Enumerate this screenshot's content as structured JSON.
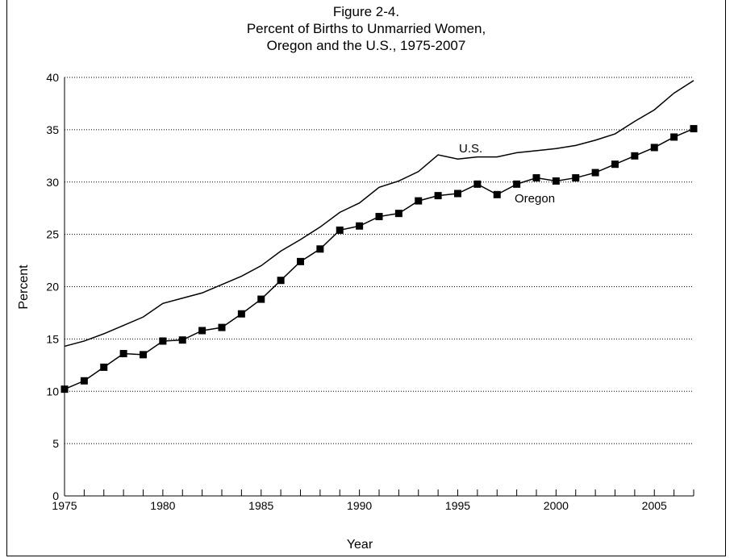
{
  "chart_data": {
    "type": "line",
    "title_lines": [
      "Figure 2-4.",
      "Percent of Births to Unmarried Women,",
      "Oregon and the U.S., 1975-2007"
    ],
    "xlabel": "Year",
    "ylabel": "Percent",
    "xlim": [
      1975,
      2007
    ],
    "ylim": [
      0,
      40
    ],
    "x_ticks": [
      1975,
      1980,
      1985,
      1990,
      1995,
      2000,
      2005
    ],
    "y_ticks": [
      0,
      5,
      10,
      15,
      20,
      25,
      30,
      35,
      40
    ],
    "grid": "horizontal dotted",
    "x": [
      1975,
      1976,
      1977,
      1978,
      1979,
      1980,
      1981,
      1982,
      1983,
      1984,
      1985,
      1986,
      1987,
      1988,
      1989,
      1990,
      1991,
      1992,
      1993,
      1994,
      1995,
      1996,
      1997,
      1998,
      1999,
      2000,
      2001,
      2002,
      2003,
      2004,
      2005,
      2006,
      2007
    ],
    "series": [
      {
        "name": "U.S.",
        "marker": "none",
        "color": "#000000",
        "values": [
          14.3,
          14.8,
          15.5,
          16.3,
          17.1,
          18.4,
          18.9,
          19.4,
          20.2,
          21.0,
          22.0,
          23.4,
          24.5,
          25.7,
          27.1,
          28.0,
          29.5,
          30.1,
          31.0,
          32.6,
          32.2,
          32.4,
          32.4,
          32.8,
          33.0,
          33.2,
          33.5,
          34.0,
          34.6,
          35.8,
          36.9,
          38.5,
          39.7
        ]
      },
      {
        "name": "Oregon",
        "marker": "square",
        "color": "#000000",
        "values": [
          10.2,
          11.0,
          12.3,
          13.6,
          13.5,
          14.8,
          14.9,
          15.8,
          16.1,
          17.4,
          18.8,
          20.6,
          22.4,
          23.6,
          25.4,
          25.8,
          26.7,
          27.0,
          28.2,
          28.7,
          28.9,
          29.8,
          28.8,
          29.8,
          30.4,
          30.1,
          30.4,
          30.9,
          31.7,
          32.5,
          33.3,
          34.3,
          35.1
        ]
      }
    ]
  }
}
